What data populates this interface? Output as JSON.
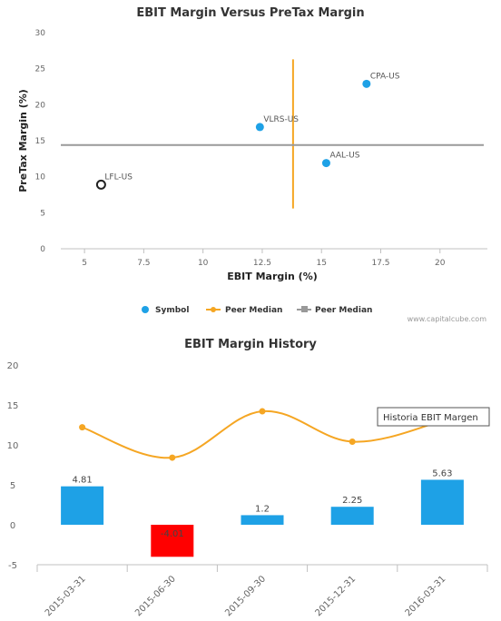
{
  "chart_data": [
    {
      "type": "scatter",
      "title": "EBIT Margin Versus PreTax Margin",
      "xlabel": "EBIT Margin (%)",
      "ylabel": "PreTax Margin (%)",
      "xlim": [
        4,
        22
      ],
      "ylim": [
        0,
        30
      ],
      "x_ticks": [
        "5",
        "7.5",
        "10",
        "12.5",
        "15",
        "17.5",
        "20"
      ],
      "x_tick_values": [
        5,
        7.5,
        10,
        12.5,
        15,
        17.5,
        20
      ],
      "y_ticks": [
        "0",
        "5",
        "10",
        "15",
        "20",
        "25",
        "30"
      ],
      "y_tick_values": [
        0,
        5,
        10,
        15,
        20,
        25,
        30
      ],
      "points": [
        {
          "label": "CPA-US",
          "x": 16.9,
          "y": 22.9,
          "style": "filled"
        },
        {
          "label": "VLRS-US",
          "x": 12.4,
          "y": 16.9,
          "style": "filled"
        },
        {
          "label": "AAL-US",
          "x": 15.2,
          "y": 11.9,
          "style": "filled"
        },
        {
          "label": "LFL-US",
          "x": 5.7,
          "y": 8.9,
          "style": "hollow"
        }
      ],
      "peer_median_x": 13.8,
      "peer_median_x_range": [
        5.6,
        26.3
      ],
      "peer_median_y": 14.4,
      "legend": [
        "Symbol",
        "Peer Median",
        "Peer Median"
      ],
      "legend_placement": "bottom",
      "credit": "www.capitalcube.com",
      "colors": {
        "symbol": "#1ea1e6",
        "peer_median_x": "#f5a623",
        "peer_median_y": "#999999"
      }
    },
    {
      "type": "bar",
      "title": "EBIT Margin History",
      "categories": [
        "2015-03-31",
        "2015-06-30",
        "2015-09-30",
        "2015-12-31",
        "2016-03-31"
      ],
      "bar_values": [
        4.81,
        -4.01,
        1.2,
        2.25,
        5.63
      ],
      "bar_labels": [
        "4.81",
        "-4.01",
        "1.2",
        "2.25",
        "5.63"
      ],
      "line_values": [
        12.2,
        8.4,
        14.2,
        10.4,
        13.0
      ],
      "ylim": [
        -5,
        20
      ],
      "y_ticks": [
        "-5",
        "0",
        "5",
        "10",
        "15",
        "20"
      ],
      "y_tick_values": [
        -5,
        0,
        5,
        10,
        15,
        20
      ],
      "tooltip": "Historia EBIT Margen",
      "colors": {
        "positive": "#1ea1e6",
        "negative": "#ff0000",
        "line": "#f5a623"
      }
    }
  ]
}
